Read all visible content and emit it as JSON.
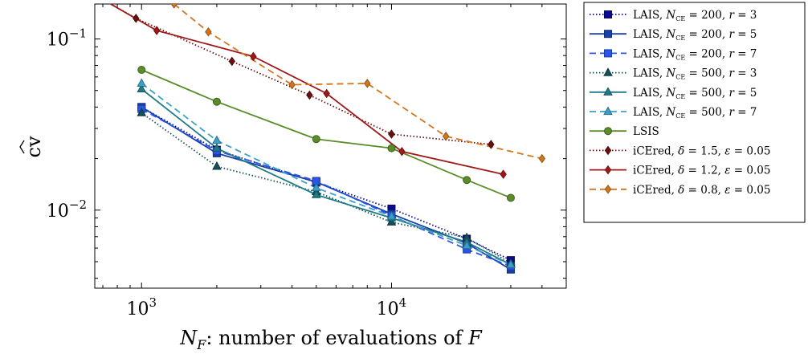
{
  "chart_data": {
    "type": "line",
    "xscale": "log",
    "yscale": "log",
    "xlim": [
      650,
      50000
    ],
    "ylim": [
      0.0035,
      0.16
    ],
    "grid": false,
    "legend_position": "outside-right",
    "xlabel": {
      "main": "N",
      "sub": "F",
      "rest": ": number of evaluations of ",
      "var": "F"
    },
    "ylabel": "cv",
    "x_ticks": [
      {
        "base": "10",
        "exp": "3",
        "value": 1000
      },
      {
        "base": "10",
        "exp": "4",
        "value": 10000
      }
    ],
    "y_ticks": [
      {
        "base": "10",
        "exp": "−2",
        "value": 0.01
      },
      {
        "base": "10",
        "exp": "−1",
        "value": 0.1
      }
    ],
    "series": [
      {
        "name": "LAIS, N_CE = 200, r = 3",
        "method": "LAIS, ",
        "n_label": "N",
        "n_sub": "CE",
        "n_val": " = 200, ",
        "p_label": "r",
        "p_val": " = 3",
        "color": "#0a0a8c",
        "dash": "dotted",
        "marker": "square",
        "x": [
          1000,
          2000,
          5000,
          10000,
          20000,
          30000
        ],
        "y": [
          0.04,
          0.0225,
          0.0145,
          0.0102,
          0.0068,
          0.0051
        ]
      },
      {
        "name": "LAIS, N_CE = 200, r = 5",
        "method": "LAIS, ",
        "n_label": "N",
        "n_sub": "CE",
        "n_val": " = 200, ",
        "p_label": "r",
        "p_val": " = 5",
        "color": "#1740a8",
        "dash": "solid",
        "marker": "square",
        "x": [
          1000,
          2000,
          5000,
          10000,
          20000,
          30000
        ],
        "y": [
          0.04,
          0.0215,
          0.0146,
          0.0095,
          0.0064,
          0.0045
        ]
      },
      {
        "name": "LAIS, N_CE = 200, r = 7",
        "method": "LAIS, ",
        "n_label": "N",
        "n_sub": "CE",
        "n_val": " = 200, ",
        "p_label": "r",
        "p_val": " = 7",
        "color": "#2a55e8",
        "dash": "dashed",
        "marker": "square",
        "x": [
          1000,
          2000,
          5000,
          10000,
          20000,
          30000
        ],
        "y": [
          0.039,
          0.0222,
          0.0148,
          0.0093,
          0.0059,
          0.0047
        ]
      },
      {
        "name": "LAIS, N_CE = 500, r = 3",
        "method": "LAIS, ",
        "n_label": "N",
        "n_sub": "CE",
        "n_val": " = 500, ",
        "p_label": "r",
        "p_val": " = 3",
        "color": "#14505a",
        "dash": "dotted",
        "marker": "triangle",
        "x": [
          1000,
          2000,
          5000,
          10000,
          20000,
          30000
        ],
        "y": [
          0.037,
          0.018,
          0.0128,
          0.0085,
          0.0069,
          0.0049
        ]
      },
      {
        "name": "LAIS, N_CE = 500, r = 5",
        "method": "LAIS, ",
        "n_label": "N",
        "n_sub": "CE",
        "n_val": " = 500, ",
        "p_label": "r",
        "p_val": " = 5",
        "color": "#1f7a86",
        "dash": "solid",
        "marker": "triangle",
        "x": [
          1000,
          2000,
          5000,
          10000,
          20000,
          30000
        ],
        "y": [
          0.051,
          0.023,
          0.0123,
          0.009,
          0.0065,
          0.0048
        ]
      },
      {
        "name": "LAIS, N_CE = 500, r = 7",
        "method": "LAIS, ",
        "n_label": "N",
        "n_sub": "CE",
        "n_val": " = 500, ",
        "p_label": "r",
        "p_val": " = 7",
        "color": "#3aa0c8",
        "dash": "dashed",
        "marker": "triangle",
        "x": [
          1000,
          2000,
          5000,
          10000,
          20000,
          30000
        ],
        "y": [
          0.055,
          0.0255,
          0.0135,
          0.0092,
          0.0062,
          0.0048
        ]
      },
      {
        "name": "LSIS",
        "method": "LSIS",
        "color": "#5a8c2a",
        "dash": "solid",
        "marker": "circle",
        "x": [
          1000,
          2000,
          5000,
          10000,
          20000,
          30000
        ],
        "y": [
          0.066,
          0.043,
          0.026,
          0.023,
          0.015,
          0.0118
        ]
      },
      {
        "name": "iCEred, δ = 1.5, ε = 0.05",
        "method": "iCEred, ",
        "d_label": "δ",
        "d_val": " = 1.5, ",
        "e_label": "ε",
        "e_val": " = 0.05",
        "color": "#6a1010",
        "dash": "dotted",
        "marker": "diamond",
        "x": [
          700,
          950,
          2300,
          4700,
          10000,
          25000
        ],
        "y": [
          0.17,
          0.132,
          0.074,
          0.047,
          0.0278,
          0.0242
        ]
      },
      {
        "name": "iCEred, δ = 1.2, ε = 0.05",
        "method": "iCEred, ",
        "d_label": "δ",
        "d_val": " = 1.2, ",
        "e_label": "ε",
        "e_val": " = 0.05",
        "color": "#a01818",
        "dash": "solid",
        "marker": "diamond",
        "x": [
          700,
          1150,
          2800,
          5500,
          11000,
          28000
        ],
        "y": [
          0.17,
          0.112,
          0.079,
          0.048,
          0.022,
          0.0162
        ]
      },
      {
        "name": "iCEred, δ = 0.8, ε = 0.05",
        "method": "iCEred, ",
        "d_label": "δ",
        "d_val": " = 0.8, ",
        "e_label": "ε",
        "e_val": " = 0.05",
        "color": "#d2761e",
        "dash": "dashed",
        "marker": "diamond",
        "x": [
          1350,
          1850,
          4000,
          8000,
          16500,
          40000
        ],
        "y": [
          0.16,
          0.11,
          0.054,
          0.055,
          0.027,
          0.02
        ]
      }
    ]
  }
}
